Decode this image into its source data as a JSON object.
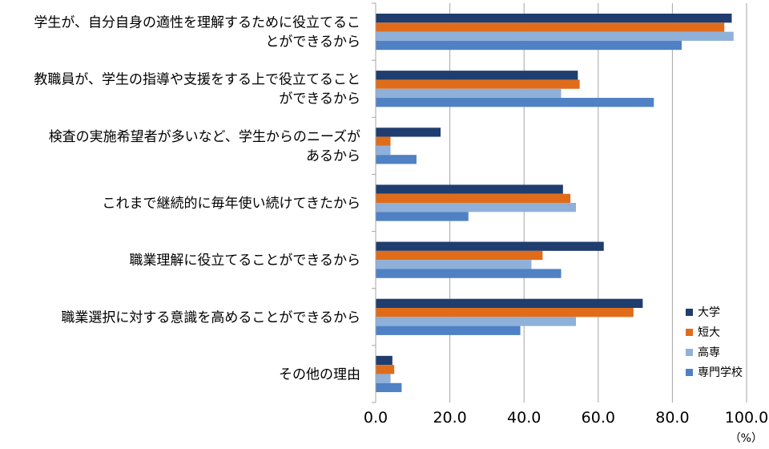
{
  "chart_data": {
    "type": "bar",
    "orientation": "horizontal",
    "categories": [
      [
        "学生が、自分自身の適性を理解するために役立てるこ",
        "とができるから"
      ],
      [
        "教職員が、学生の指導や支援をする上で役立てること",
        "ができるから"
      ],
      [
        "検査の実施希望者が多いなど、学生からのニーズが",
        "あるから"
      ],
      [
        "これまで継続的に毎年使い続けてきたから"
      ],
      [
        "職業理解に役立てることができるから"
      ],
      [
        "職業選択に対する意識を高めることができるから"
      ],
      [
        "その他の理由"
      ]
    ],
    "series": [
      {
        "name": "大学",
        "color": "#1f3d6e",
        "values": [
          96.0,
          54.5,
          17.5,
          50.5,
          61.5,
          72.0,
          4.5
        ]
      },
      {
        "name": "短大",
        "color": "#e06c1a",
        "values": [
          94.0,
          55.0,
          4.0,
          52.5,
          45.0,
          69.5,
          5.0
        ]
      },
      {
        "name": "高専",
        "color": "#8fb0d9",
        "values": [
          96.5,
          50.0,
          4.0,
          54.0,
          42.0,
          54.0,
          4.0
        ]
      },
      {
        "name": "専門学校",
        "color": "#4f81c4",
        "values": [
          82.5,
          75.0,
          11.0,
          25.0,
          50.0,
          39.0,
          7.0
        ]
      }
    ],
    "xlim": [
      0,
      100
    ],
    "xticks": [
      "0.0",
      "20.0",
      "40.0",
      "60.0",
      "80.0",
      "100.0"
    ],
    "xunit": "（%）",
    "grid": true,
    "legend_position": "bottom-right"
  }
}
